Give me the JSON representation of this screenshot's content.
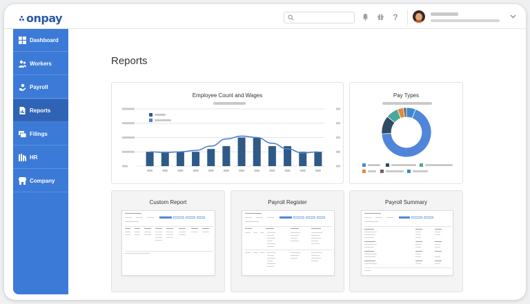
{
  "app": {
    "logo": "onpay"
  },
  "header": {
    "search": {
      "placeholder": ""
    }
  },
  "sidebar": {
    "items": [
      {
        "label": "Dashboard",
        "icon": "dashboard-icon"
      },
      {
        "label": "Workers",
        "icon": "workers-icon"
      },
      {
        "label": "Payroll",
        "icon": "payroll-icon"
      },
      {
        "label": "Reports",
        "icon": "reports-icon",
        "active": true
      },
      {
        "label": "Filings",
        "icon": "filings-icon"
      },
      {
        "label": "HR",
        "icon": "hr-icon"
      },
      {
        "label": "Company",
        "icon": "company-icon"
      }
    ]
  },
  "main": {
    "title": "Reports",
    "cards": {
      "employee": {
        "title": "Employee Count and Wages"
      },
      "pay_types": {
        "title": "Pay Types"
      },
      "custom": {
        "title": "Custom Report"
      },
      "register": {
        "title": "Payroll Register"
      },
      "summary": {
        "title": "Payroll Summary"
      }
    }
  },
  "colors": {
    "accent": "#3c7ad7",
    "sidebar_active": "#2f63b6",
    "bar": "#2f5a86",
    "line": "#4f7fcf",
    "donut": [
      "#4f86d9",
      "#2f4a66",
      "#4aa89a",
      "#e08a3c",
      "#7a5a6a",
      "#3a8ad0"
    ]
  },
  "chart_data": [
    {
      "type": "bar",
      "title": "Employee Count and Wages",
      "categories": [
        "",
        "",
        "",
        "",
        "",
        "",
        "",
        "",
        "",
        "",
        "",
        ""
      ],
      "series": [
        {
          "values": [
            5,
            5,
            5,
            5,
            6,
            7,
            10,
            10,
            7,
            7,
            5,
            5
          ]
        },
        {
          "values": [
            5,
            4.8,
            5,
            5.5,
            7,
            9.5,
            10.5,
            10,
            8,
            6,
            4.6,
            5
          ]
        }
      ],
      "ylim": [
        0,
        20
      ],
      "grid": true,
      "legend": "top-left"
    },
    {
      "type": "pie",
      "title": "Pay Types",
      "slices": [
        68,
        12,
        8,
        4,
        2,
        6
      ],
      "legend": "bottom"
    }
  ]
}
